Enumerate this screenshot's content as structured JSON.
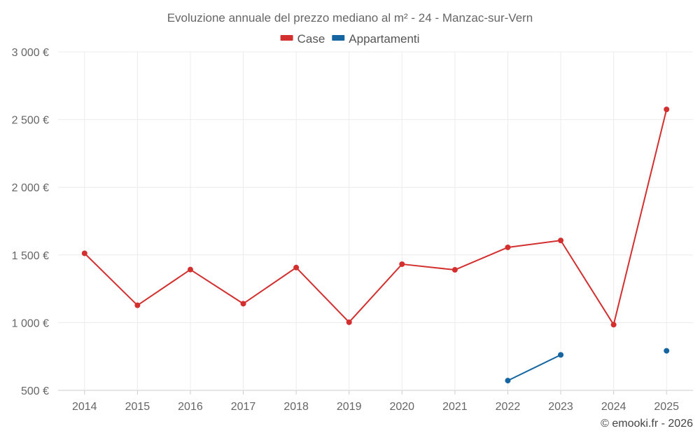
{
  "chart_data": {
    "type": "line",
    "title": "Evoluzione annuale del prezzo mediano al m² - 24 - Manzac-sur-Vern",
    "categories": [
      "2014",
      "2015",
      "2016",
      "2017",
      "2018",
      "2019",
      "2020",
      "2021",
      "2022",
      "2023",
      "2024",
      "2025"
    ],
    "series": [
      {
        "name": "Case",
        "color": "#d32f2f",
        "values": [
          1512,
          1128,
          1392,
          1140,
          1407,
          1003,
          1432,
          1390,
          1556,
          1607,
          985,
          2575
        ]
      },
      {
        "name": "Appartamenti",
        "color": "#1565a0",
        "values": [
          null,
          null,
          null,
          null,
          null,
          null,
          null,
          null,
          572,
          762,
          null,
          792
        ]
      }
    ],
    "ylim": [
      500,
      3000
    ],
    "yticks": [
      3000,
      2500,
      2000,
      1500,
      1000,
      500
    ],
    "ytick_labels": [
      "3 000 €",
      "2 500 €",
      "2 000 €",
      "1 500 €",
      "1 000 €",
      "500 €"
    ],
    "grid": true,
    "legend_position": "top-center"
  },
  "credit": "© emooki.fr - 2026"
}
